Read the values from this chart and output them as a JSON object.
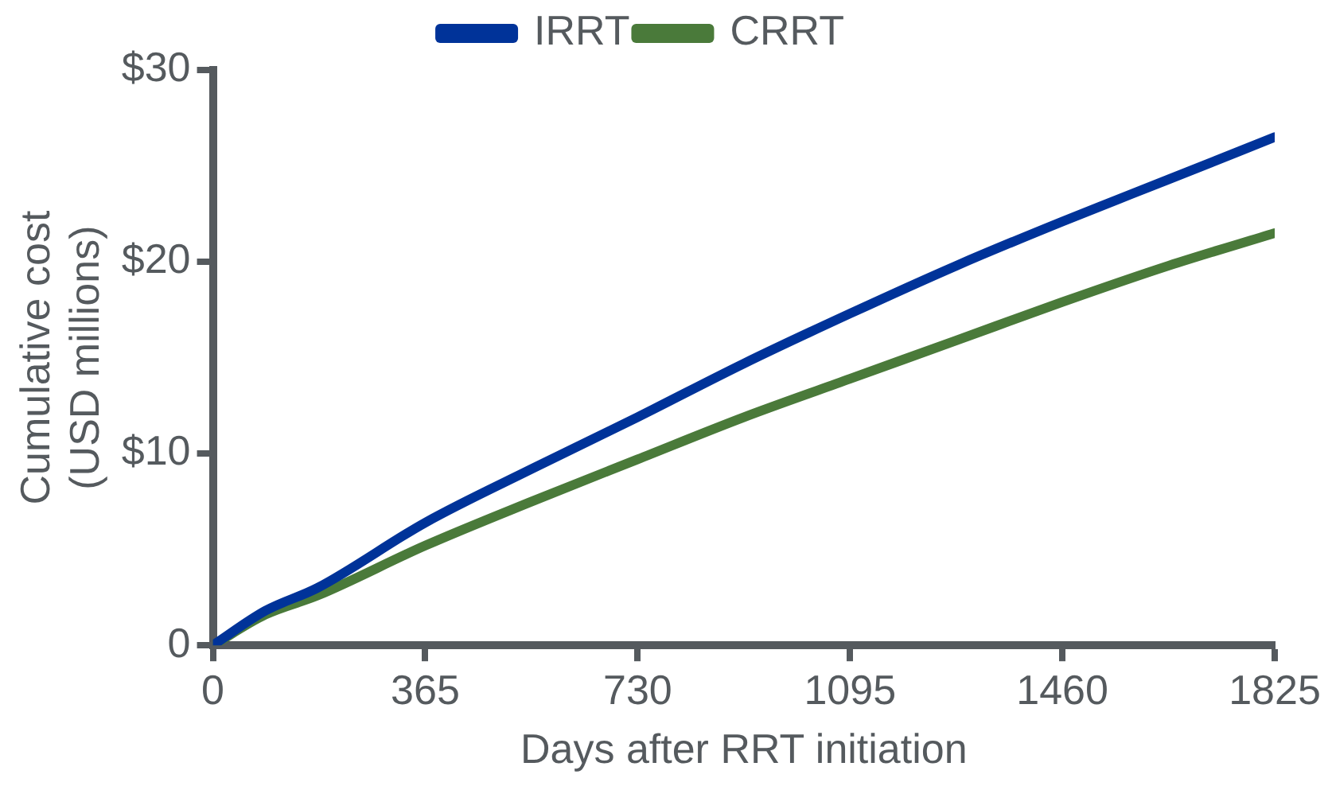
{
  "chart_data": {
    "type": "line",
    "xlabel": "Days after RRT initiation",
    "ylabel": "Cumulative cost\n(USD millions)",
    "xlim": [
      0,
      1825
    ],
    "xticks": [
      0,
      365,
      730,
      1095,
      1460,
      1825
    ],
    "ylim": [
      0,
      30
    ],
    "yticks": [
      0,
      {
        "value": 10,
        "label": "$10"
      },
      {
        "value": 20,
        "label": "$20"
      },
      {
        "value": 30,
        "label": "$30"
      }
    ],
    "x": [
      0,
      90,
      180,
      365,
      548,
      730,
      913,
      1095,
      1278,
      1460,
      1643,
      1825
    ],
    "series": [
      {
        "name": "IRRT",
        "color": "#003399",
        "values": [
          0,
          1.8,
          3.0,
          6.4,
          9.2,
          11.9,
          14.7,
          17.3,
          19.8,
          22.1,
          24.3,
          26.5
        ]
      },
      {
        "name": "CRRT",
        "color": "#4a7a3a",
        "values": [
          0,
          1.6,
          2.6,
          5.2,
          7.5,
          9.7,
          11.9,
          13.9,
          15.9,
          17.9,
          19.8,
          21.5
        ]
      }
    ],
    "legend": "top",
    "grid": false,
    "marker": "none",
    "line_style": "solid"
  }
}
